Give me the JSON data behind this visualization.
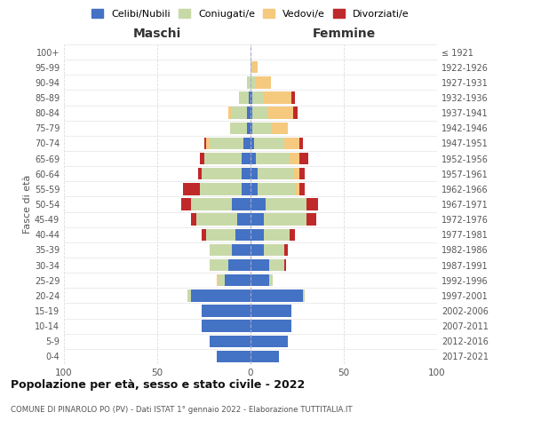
{
  "age_groups": [
    "0-4",
    "5-9",
    "10-14",
    "15-19",
    "20-24",
    "25-29",
    "30-34",
    "35-39",
    "40-44",
    "45-49",
    "50-54",
    "55-59",
    "60-64",
    "65-69",
    "70-74",
    "75-79",
    "80-84",
    "85-89",
    "90-94",
    "95-99",
    "100+"
  ],
  "birth_years": [
    "2017-2021",
    "2012-2016",
    "2007-2011",
    "2002-2006",
    "1997-2001",
    "1992-1996",
    "1987-1991",
    "1982-1986",
    "1977-1981",
    "1972-1976",
    "1967-1971",
    "1962-1966",
    "1957-1961",
    "1952-1956",
    "1947-1951",
    "1942-1946",
    "1937-1941",
    "1932-1936",
    "1927-1931",
    "1922-1926",
    "≤ 1921"
  ],
  "maschi": {
    "celibi": [
      18,
      22,
      26,
      26,
      32,
      14,
      12,
      10,
      8,
      7,
      10,
      5,
      5,
      5,
      4,
      2,
      2,
      1,
      0,
      0,
      0
    ],
    "coniugati": [
      0,
      0,
      0,
      0,
      2,
      3,
      10,
      12,
      16,
      22,
      22,
      22,
      21,
      20,
      18,
      9,
      8,
      5,
      2,
      0,
      0
    ],
    "vedovi": [
      0,
      0,
      0,
      0,
      0,
      1,
      0,
      0,
      0,
      0,
      0,
      0,
      0,
      0,
      2,
      0,
      2,
      0,
      0,
      0,
      0
    ],
    "divorziati": [
      0,
      0,
      0,
      0,
      0,
      0,
      0,
      0,
      2,
      3,
      5,
      9,
      2,
      2,
      1,
      0,
      0,
      0,
      0,
      0,
      0
    ]
  },
  "femmine": {
    "nubili": [
      15,
      20,
      22,
      22,
      28,
      10,
      10,
      7,
      7,
      7,
      8,
      4,
      4,
      3,
      2,
      1,
      1,
      1,
      0,
      0,
      0
    ],
    "coniugate": [
      0,
      0,
      0,
      0,
      1,
      2,
      8,
      11,
      14,
      23,
      22,
      20,
      19,
      18,
      16,
      10,
      8,
      6,
      3,
      1,
      0
    ],
    "vedove": [
      0,
      0,
      0,
      0,
      0,
      0,
      0,
      0,
      0,
      0,
      0,
      2,
      3,
      5,
      8,
      9,
      14,
      15,
      8,
      3,
      0
    ],
    "divorziate": [
      0,
      0,
      0,
      0,
      0,
      0,
      1,
      2,
      3,
      5,
      6,
      3,
      3,
      5,
      2,
      0,
      2,
      2,
      0,
      0,
      0
    ]
  },
  "colors": {
    "celibi": "#4472c4",
    "coniugati": "#c8d9a8",
    "vedovi": "#f5c97e",
    "divorziati": "#c0292a"
  },
  "legend_labels": [
    "Celibi/Nubili",
    "Coniugati/e",
    "Vedovi/e",
    "Divorziati/e"
  ],
  "xlim": 100,
  "title": "Popolazione per età, sesso e stato civile - 2022",
  "subtitle": "COMUNE DI PINAROLO PO (PV) - Dati ISTAT 1° gennaio 2022 - Elaborazione TUTTITALIA.IT",
  "ylabel_left": "Fasce di età",
  "xlabel_left": "Maschi",
  "xlabel_right": "Femmine",
  "bg_color": "#ffffff",
  "grid_color": "#cccccc"
}
